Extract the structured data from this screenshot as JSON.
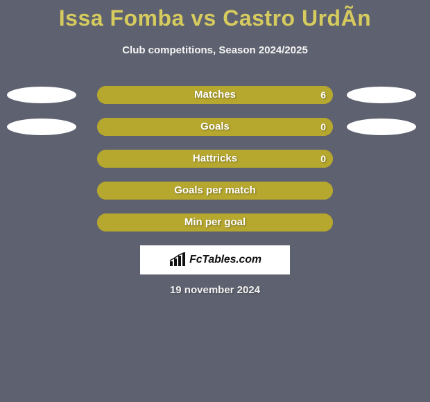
{
  "background_color": "#5e616f",
  "title": {
    "text": "Issa Fomba vs Castro UrdÃ­n",
    "color": "#d6cb5e",
    "fontsize": 32
  },
  "subtitle": {
    "text": "Club competitions, Season 2024/2025",
    "color": "#f5f5f5",
    "fontsize": 15
  },
  "bar_track_color": "#b6a72f",
  "bar_fill_color": "#b6a72f",
  "bar_label_color": "#ffffff",
  "oval_colors": {
    "left": "#ffffff",
    "right": "#ffffff"
  },
  "rows": [
    {
      "label": "Matches",
      "left_value": "",
      "right_value": "6",
      "fill_pct": 100,
      "show_left_oval": true,
      "show_right_oval": true,
      "show_right_value": true
    },
    {
      "label": "Goals",
      "left_value": "",
      "right_value": "0",
      "fill_pct": 100,
      "show_left_oval": true,
      "show_right_oval": true,
      "show_right_value": true
    },
    {
      "label": "Hattricks",
      "left_value": "",
      "right_value": "0",
      "fill_pct": 100,
      "show_left_oval": false,
      "show_right_oval": false,
      "show_right_value": true
    },
    {
      "label": "Goals per match",
      "left_value": "",
      "right_value": "",
      "fill_pct": 100,
      "show_left_oval": false,
      "show_right_oval": false,
      "show_right_value": false
    },
    {
      "label": "Min per goal",
      "left_value": "",
      "right_value": "",
      "fill_pct": 100,
      "show_left_oval": false,
      "show_right_oval": false,
      "show_right_value": false
    }
  ],
  "logo": {
    "box_bg": "#ffffff",
    "icon_name": "bar-chart-icon",
    "text": "FcTables.com",
    "text_color": "#111111"
  },
  "date": {
    "text": "19 november 2024",
    "color": "#f2f2f2"
  }
}
